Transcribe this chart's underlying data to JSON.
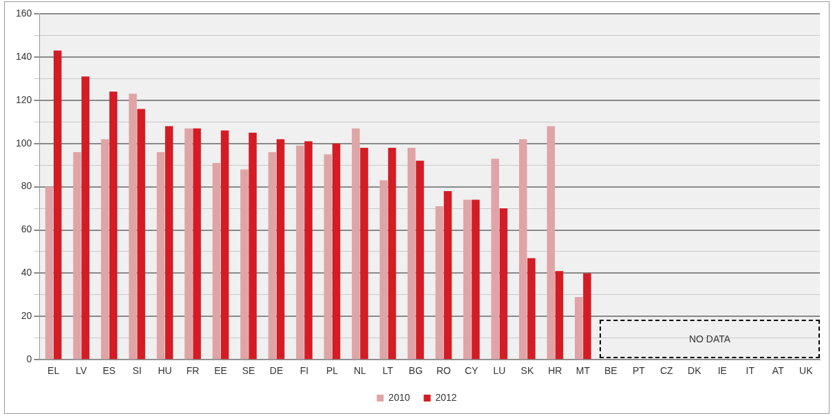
{
  "chart_data": {
    "type": "bar",
    "categories": [
      "EL",
      "LV",
      "ES",
      "SI",
      "HU",
      "FR",
      "EE",
      "SE",
      "DE",
      "FI",
      "PL",
      "NL",
      "LT",
      "BG",
      "RO",
      "CY",
      "LU",
      "SK",
      "HR",
      "MT",
      "BE",
      "PT",
      "CZ",
      "DK",
      "IE",
      "IT",
      "AT",
      "UK"
    ],
    "series": [
      {
        "name": "2010",
        "color": "#e0a4a6",
        "values": [
          80,
          96,
          102,
          123,
          96,
          107,
          91,
          88,
          96,
          99,
          95,
          107,
          83,
          98,
          71,
          74,
          93,
          102,
          108,
          29,
          null,
          null,
          null,
          null,
          null,
          null,
          null,
          null
        ]
      },
      {
        "name": "2012",
        "color": "#d41c24",
        "values": [
          143,
          131,
          124,
          116,
          108,
          107,
          106,
          105,
          102,
          101,
          100,
          98,
          98,
          92,
          78,
          74,
          70,
          47,
          41,
          40,
          null,
          null,
          null,
          null,
          null,
          null,
          null,
          null
        ]
      }
    ],
    "ylim": [
      0,
      160
    ],
    "yticks": [
      0,
      {
        "value": 10,
        "label": null
      },
      20,
      {
        "value": 30,
        "label": null
      },
      40,
      {
        "value": 50,
        "label": null
      },
      60,
      {
        "value": 70,
        "label": null
      },
      80,
      {
        "value": 90,
        "label": null
      },
      100,
      {
        "value": 110,
        "label": null
      },
      120,
      {
        "value": 130,
        "label": null
      },
      140,
      {
        "value": 150,
        "label": null
      },
      160
    ],
    "grid": "y",
    "legend": "bottom",
    "annotations": [
      "NO DATA"
    ]
  }
}
